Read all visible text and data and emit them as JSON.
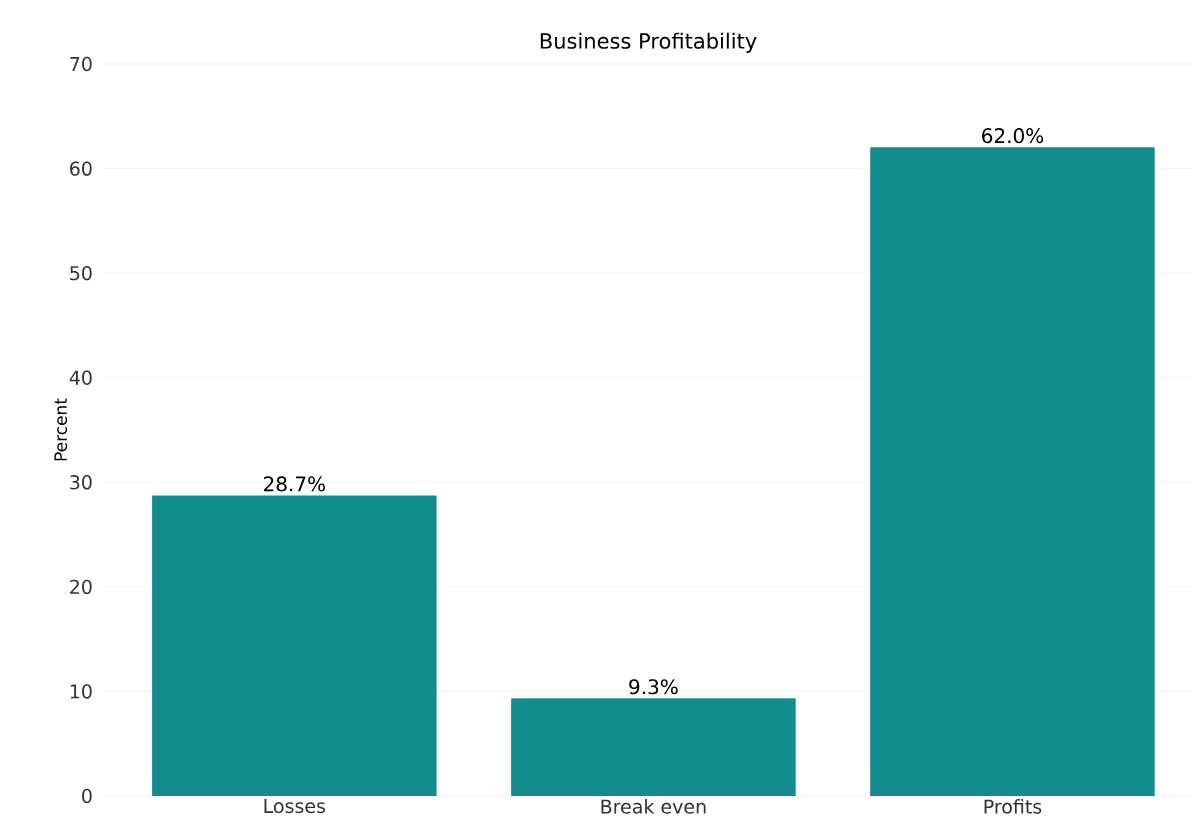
{
  "chart_data": {
    "type": "bar",
    "title": "Business Profitability",
    "ylabel": "Percent",
    "categories": [
      "Losses",
      "Break even",
      "Profits"
    ],
    "values": [
      28.7,
      9.3,
      62.0
    ],
    "value_labels": [
      "28.7%",
      "9.3%",
      "62.0%"
    ],
    "color": "#128c8c",
    "ylim": [
      0,
      70
    ],
    "yticks": [
      0,
      10,
      20,
      30,
      40,
      50,
      60,
      70
    ],
    "grid": "y"
  }
}
